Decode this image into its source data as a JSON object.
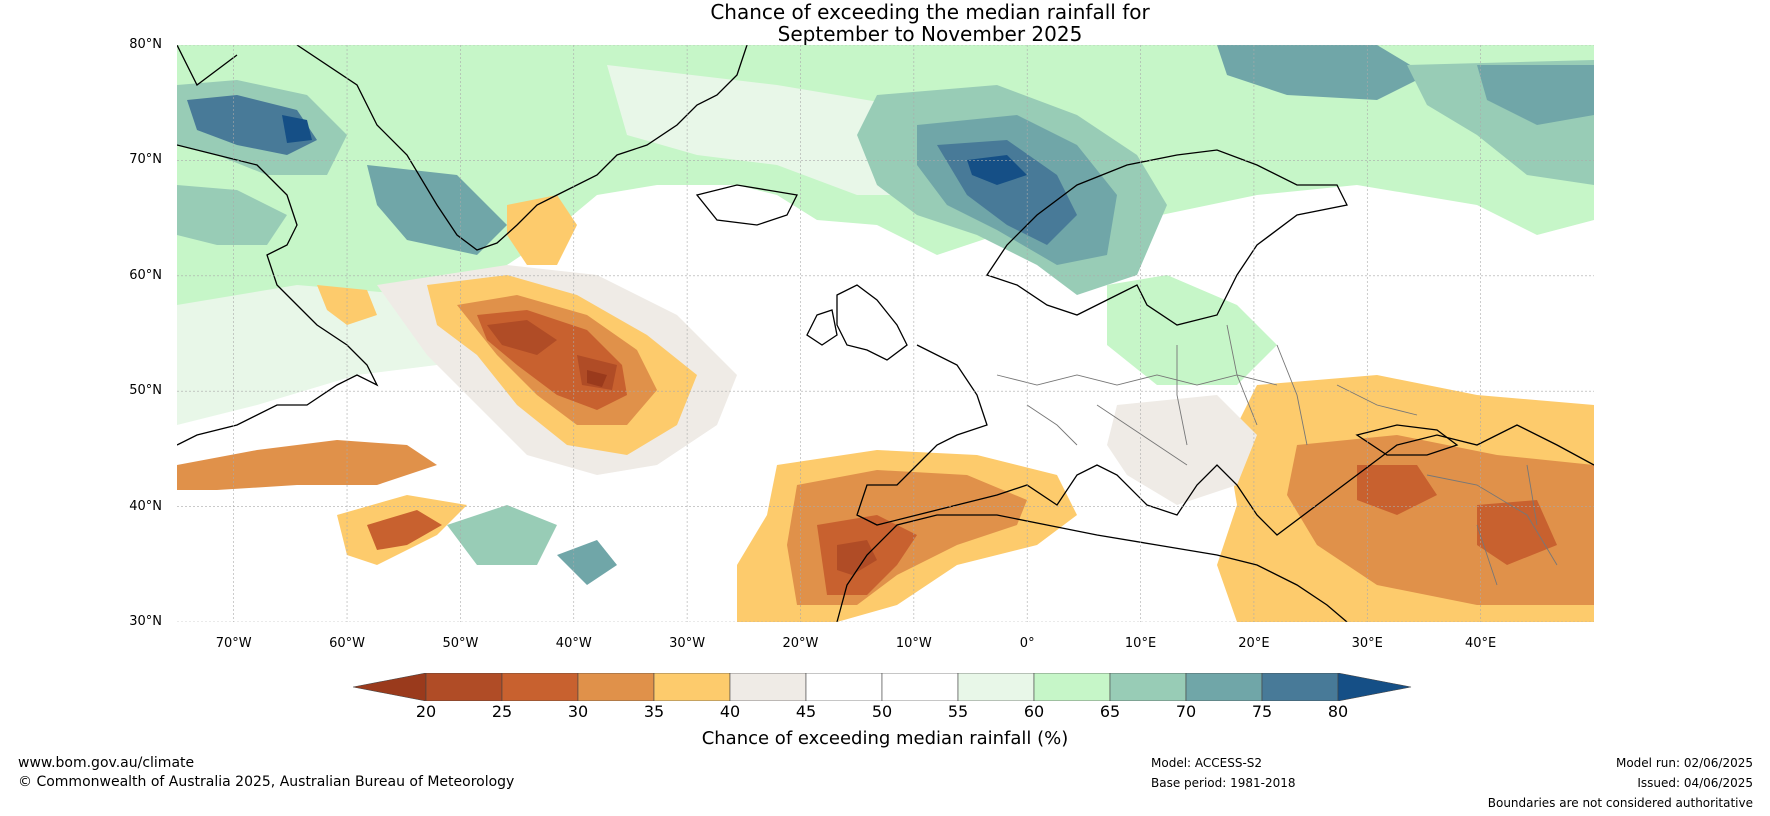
{
  "title": {
    "line1": "Chance of exceeding the median rainfall for",
    "line2": "September to November 2025"
  },
  "axes": {
    "lat_labels": [
      "80°N",
      "70°N",
      "60°N",
      "50°N",
      "40°N",
      "30°N"
    ],
    "lon_labels": [
      "70°W",
      "60°W",
      "50°W",
      "40°W",
      "30°W",
      "20°W",
      "10°W",
      "0°",
      "10°E",
      "20°E",
      "30°E",
      "40°E"
    ],
    "lon_range": [
      -75,
      50
    ],
    "lat_range": [
      30,
      80
    ],
    "grid": true
  },
  "legend": {
    "label": "Chance of exceeding median rainfall (%)",
    "ticks": [
      "20",
      "25",
      "30",
      "35",
      "40",
      "45",
      "50",
      "55",
      "60",
      "65",
      "70",
      "75",
      "80"
    ],
    "bins": [
      {
        "range": "<20",
        "color": "#9a3a1c"
      },
      {
        "range": "20-25",
        "color": "#b04c26"
      },
      {
        "range": "25-30",
        "color": "#c8612f"
      },
      {
        "range": "30-35",
        "color": "#e0914a"
      },
      {
        "range": "35-40",
        "color": "#fdcb6c"
      },
      {
        "range": "40-45",
        "color": "#efebe6"
      },
      {
        "range": "45-50",
        "color": "#ffffff"
      },
      {
        "range": "50-55",
        "color": "#ffffff"
      },
      {
        "range": "55-60",
        "color": "#e8f7e8"
      },
      {
        "range": "60-65",
        "color": "#c6f6c8"
      },
      {
        "range": "65-70",
        "color": "#98ccb6"
      },
      {
        "range": "70-75",
        "color": "#70a6a8"
      },
      {
        "range": "75-80",
        "color": "#487a98"
      },
      {
        "range": ">80",
        "color": "#154f86"
      }
    ]
  },
  "footer": {
    "website": "www.bom.gov.au/climate",
    "copyright": "© Commonwealth of Australia 2025, Australian Bureau of Meteorology",
    "model": "Model: ACCESS-S2",
    "base_period": "Base period: 1981-2018",
    "model_run": "Model run: 02/06/2025",
    "issued": "Issued: 04/06/2025",
    "disclaimer": "Boundaries are not considered authoritative"
  },
  "map_regions": [
    {
      "name": "greenland-north",
      "bin": "60-65"
    },
    {
      "name": "baffin-wet",
      "bin": "75-80"
    },
    {
      "name": "norwegian-sea-wet",
      "bin": ">80"
    },
    {
      "name": "north-atlantic-dry",
      "bin": "20-25"
    },
    {
      "name": "iberia-nw-africa-dry",
      "bin": "25-30"
    },
    {
      "name": "eastern-mediterranean-dry",
      "bin": "30-35"
    },
    {
      "name": "scandinavia-wet",
      "bin": "70-75"
    }
  ]
}
